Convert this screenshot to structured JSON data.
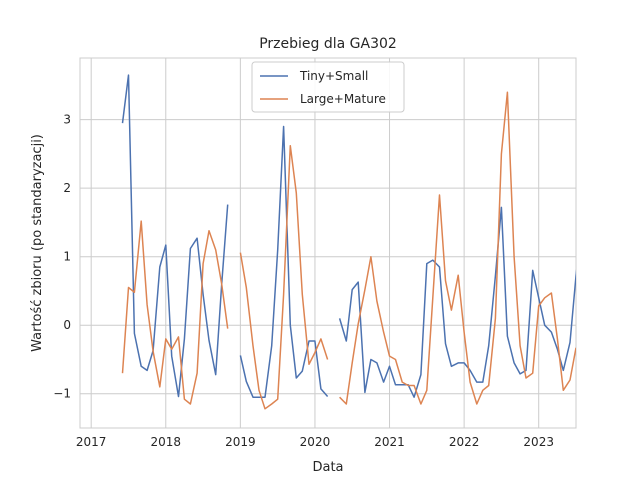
{
  "chart_data": {
    "type": "line",
    "title": "Przebieg dla GA302",
    "xlabel": "Data",
    "ylabel": "Wartość zbioru (po standaryzacji)",
    "xlim": [
      2016.85,
      2023.5
    ],
    "ylim": [
      -1.5,
      3.9
    ],
    "x_ticks": [
      2017,
      2018,
      2019,
      2020,
      2021,
      2022,
      2023
    ],
    "x_tick_labels": [
      "2017",
      "2018",
      "2019",
      "2020",
      "2021",
      "2022",
      "2023"
    ],
    "y_ticks": [
      -1,
      0,
      1,
      2,
      3
    ],
    "y_tick_labels": [
      "−1",
      "0",
      "1",
      "2",
      "3"
    ],
    "grid": true,
    "legend_position": "top-center",
    "series": [
      {
        "name": "Tiny+Small",
        "color": "#4c72b0",
        "segments": [
          [
            [
              2017.42,
              2.95
            ],
            [
              2017.5,
              3.65
            ],
            [
              2017.58,
              -0.12
            ],
            [
              2017.67,
              -0.6
            ],
            [
              2017.75,
              -0.66
            ],
            [
              2017.83,
              -0.37
            ],
            [
              2017.92,
              0.85
            ],
            [
              2018.0,
              1.17
            ],
            [
              2018.08,
              -0.45
            ],
            [
              2018.17,
              -1.04
            ],
            [
              2018.25,
              -0.2
            ],
            [
              2018.33,
              1.12
            ],
            [
              2018.42,
              1.27
            ],
            [
              2018.5,
              0.45
            ],
            [
              2018.58,
              -0.22
            ],
            [
              2018.67,
              -0.72
            ],
            [
              2018.75,
              0.6
            ],
            [
              2018.83,
              1.76
            ]
          ],
          [
            [
              2019.0,
              -0.44
            ],
            [
              2019.08,
              -0.82
            ],
            [
              2019.17,
              -1.05
            ],
            [
              2019.25,
              -1.05
            ],
            [
              2019.33,
              -1.05
            ],
            [
              2019.42,
              -0.3
            ],
            [
              2019.5,
              1.1
            ],
            [
              2019.58,
              2.9
            ],
            [
              2019.67,
              0.0
            ],
            [
              2019.75,
              -0.77
            ],
            [
              2019.83,
              -0.67
            ],
            [
              2019.92,
              -0.23
            ],
            [
              2020.0,
              -0.23
            ],
            [
              2020.08,
              -0.93
            ],
            [
              2020.17,
              -1.04
            ]
          ],
          [
            [
              2020.33,
              0.1
            ],
            [
              2020.42,
              -0.23
            ],
            [
              2020.5,
              0.52
            ],
            [
              2020.58,
              0.63
            ],
            [
              2020.67,
              -0.98
            ],
            [
              2020.75,
              -0.5
            ],
            [
              2020.83,
              -0.55
            ],
            [
              2020.92,
              -0.83
            ],
            [
              2021.0,
              -0.6
            ],
            [
              2021.08,
              -0.87
            ],
            [
              2021.17,
              -0.87
            ],
            [
              2021.25,
              -0.87
            ],
            [
              2021.33,
              -1.05
            ],
            [
              2021.42,
              -0.72
            ],
            [
              2021.5,
              0.9
            ],
            [
              2021.58,
              0.95
            ],
            [
              2021.67,
              0.85
            ],
            [
              2021.75,
              -0.27
            ],
            [
              2021.83,
              -0.6
            ],
            [
              2021.92,
              -0.55
            ],
            [
              2022.0,
              -0.55
            ],
            [
              2022.08,
              -0.66
            ],
            [
              2022.17,
              -0.83
            ],
            [
              2022.25,
              -0.83
            ],
            [
              2022.33,
              -0.3
            ],
            [
              2022.42,
              0.72
            ],
            [
              2022.5,
              1.72
            ],
            [
              2022.58,
              -0.16
            ],
            [
              2022.67,
              -0.55
            ],
            [
              2022.75,
              -0.71
            ],
            [
              2022.83,
              -0.66
            ],
            [
              2022.92,
              0.8
            ],
            [
              2023.0,
              0.4
            ],
            [
              2023.08,
              0.0
            ],
            [
              2023.17,
              -0.1
            ],
            [
              2023.25,
              -0.35
            ],
            [
              2023.33,
              -0.66
            ],
            [
              2023.42,
              -0.25
            ],
            [
              2023.5,
              0.72
            ],
            [
              2023.58,
              1.5
            ]
          ]
        ]
      },
      {
        "name": "Large+Mature",
        "color": "#dd8452",
        "segments": [
          [
            [
              2017.42,
              -0.7
            ],
            [
              2017.5,
              0.55
            ],
            [
              2017.58,
              0.48
            ],
            [
              2017.67,
              1.52
            ],
            [
              2017.75,
              0.3
            ],
            [
              2017.83,
              -0.38
            ],
            [
              2017.92,
              -0.9
            ],
            [
              2018.0,
              -0.2
            ],
            [
              2018.08,
              -0.35
            ],
            [
              2018.17,
              -0.17
            ],
            [
              2018.25,
              -1.08
            ],
            [
              2018.33,
              -1.15
            ],
            [
              2018.42,
              -0.7
            ],
            [
              2018.5,
              0.9
            ],
            [
              2018.58,
              1.38
            ],
            [
              2018.67,
              1.1
            ],
            [
              2018.75,
              0.6
            ],
            [
              2018.83,
              -0.05
            ]
          ],
          [
            [
              2019.0,
              1.06
            ],
            [
              2019.08,
              0.55
            ],
            [
              2019.17,
              -0.3
            ],
            [
              2019.25,
              -0.95
            ],
            [
              2019.33,
              -1.22
            ],
            [
              2019.42,
              -1.15
            ],
            [
              2019.5,
              -1.08
            ],
            [
              2019.58,
              0.45
            ],
            [
              2019.67,
              2.62
            ],
            [
              2019.75,
              1.93
            ],
            [
              2019.83,
              0.45
            ],
            [
              2019.92,
              -0.57
            ],
            [
              2020.0,
              -0.4
            ],
            [
              2020.08,
              -0.2
            ],
            [
              2020.17,
              -0.5
            ]
          ],
          [
            [
              2020.33,
              -1.05
            ],
            [
              2020.42,
              -1.15
            ],
            [
              2020.5,
              -0.55
            ],
            [
              2020.58,
              0.02
            ],
            [
              2020.67,
              0.52
            ],
            [
              2020.75,
              1.0
            ],
            [
              2020.83,
              0.35
            ],
            [
              2020.92,
              -0.1
            ],
            [
              2021.0,
              -0.45
            ],
            [
              2021.08,
              -0.5
            ],
            [
              2021.17,
              -0.83
            ],
            [
              2021.25,
              -0.88
            ],
            [
              2021.33,
              -0.88
            ],
            [
              2021.42,
              -1.15
            ],
            [
              2021.5,
              -0.95
            ],
            [
              2021.58,
              0.4
            ],
            [
              2021.67,
              1.9
            ],
            [
              2021.75,
              0.65
            ],
            [
              2021.83,
              0.22
            ],
            [
              2021.92,
              0.73
            ],
            [
              2022.0,
              -0.1
            ],
            [
              2022.08,
              -0.83
            ],
            [
              2022.17,
              -1.15
            ],
            [
              2022.25,
              -0.95
            ],
            [
              2022.33,
              -0.88
            ],
            [
              2022.42,
              0.1
            ],
            [
              2022.5,
              2.5
            ],
            [
              2022.58,
              3.4
            ],
            [
              2022.67,
              1.0
            ],
            [
              2022.75,
              -0.3
            ],
            [
              2022.83,
              -0.77
            ],
            [
              2022.92,
              -0.7
            ],
            [
              2023.0,
              0.28
            ],
            [
              2023.08,
              0.4
            ],
            [
              2023.17,
              0.47
            ],
            [
              2023.25,
              -0.2
            ],
            [
              2023.33,
              -0.95
            ],
            [
              2023.42,
              -0.8
            ],
            [
              2023.5,
              -0.33
            ]
          ]
        ]
      }
    ]
  }
}
